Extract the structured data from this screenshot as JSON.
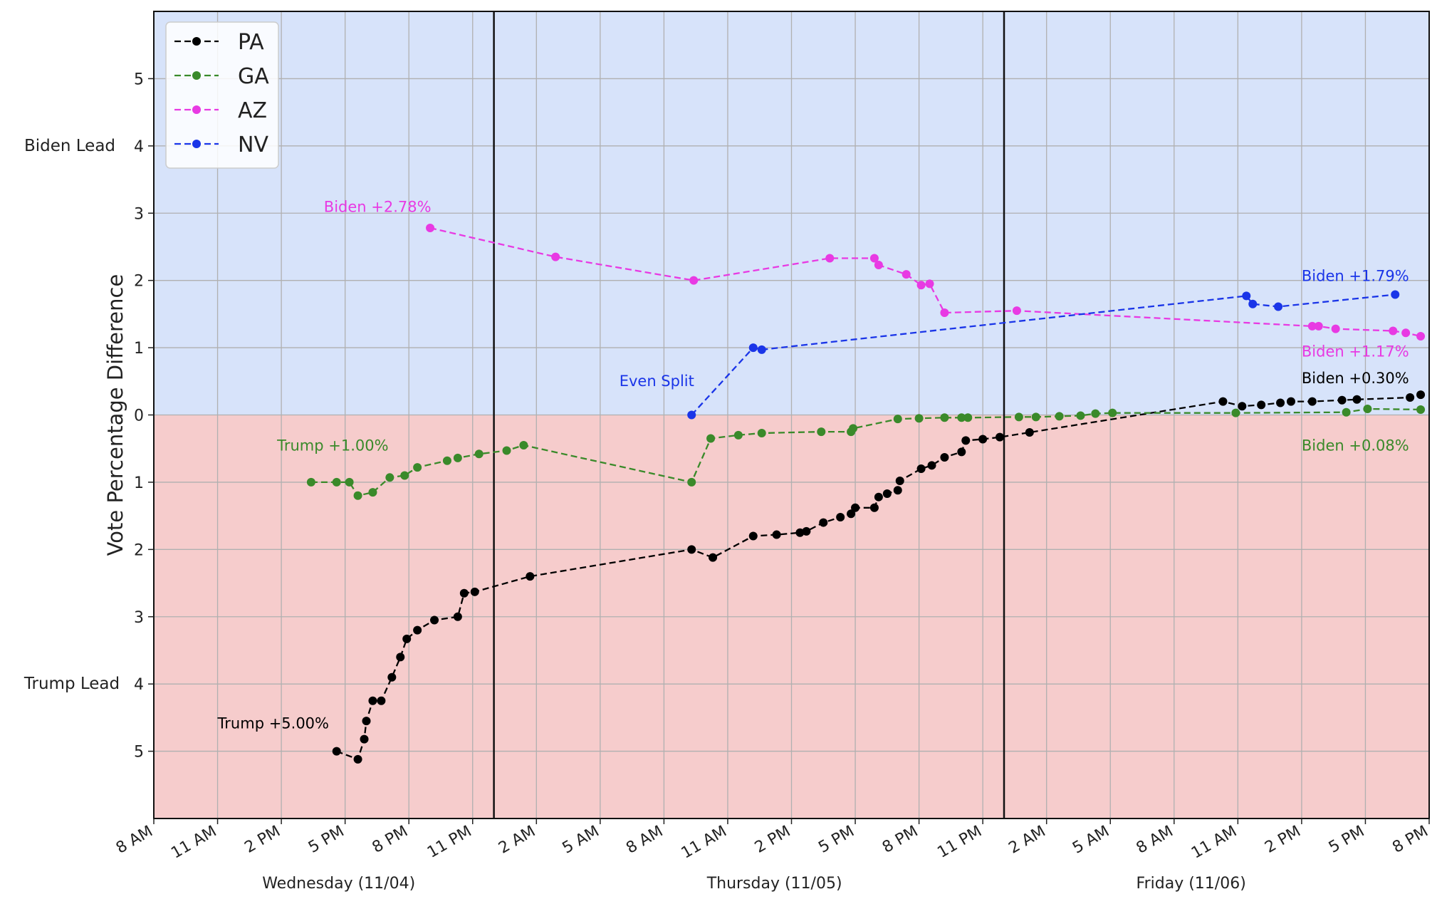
{
  "chart_data": {
    "type": "line",
    "ylabel": "Vote Percentage Difference",
    "xlim_hours": [
      0,
      60
    ],
    "ylim": [
      -6,
      6
    ],
    "grid": true,
    "legend_position": "top-left",
    "y_ticks": [
      {
        "value": 5,
        "label": "5"
      },
      {
        "value": 4,
        "label": "4"
      },
      {
        "value": 3,
        "label": "3"
      },
      {
        "value": 2,
        "label": "2"
      },
      {
        "value": 1,
        "label": "1"
      },
      {
        "value": 0,
        "label": "0"
      },
      {
        "value": -1,
        "label": "1"
      },
      {
        "value": -2,
        "label": "2"
      },
      {
        "value": -3,
        "label": "3"
      },
      {
        "value": -4,
        "label": "4"
      },
      {
        "value": -5,
        "label": "5"
      }
    ],
    "x_ticks": [
      "8 AM",
      "11 AM",
      "2 PM",
      "5 PM",
      "8 PM",
      "11 PM",
      "2 AM",
      "5 AM",
      "8 AM",
      "11 AM",
      "2 PM",
      "5 PM",
      "8 PM",
      "11 PM",
      "2 AM",
      "5 AM",
      "8 AM",
      "11 AM",
      "2 PM",
      "5 PM",
      "8 PM"
    ],
    "day_labels": [
      {
        "text": "Wednesday (11/04)",
        "hour": 8.7
      },
      {
        "text": "Thursday (11/05)",
        "hour": 29.2
      },
      {
        "text": "Friday (11/06)",
        "hour": 48.8
      }
    ],
    "midnight_lines": [
      16,
      40
    ],
    "region_labels": {
      "biden": "Biden Lead",
      "trump": "Trump Lead"
    },
    "region_colors": {
      "biden": "#d7e3fa",
      "trump": "#f6cccc"
    },
    "series": [
      {
        "name": "PA",
        "color": "#000000",
        "points": [
          [
            8.6,
            -5.0
          ],
          [
            9.6,
            -5.12
          ],
          [
            9.9,
            -4.82
          ],
          [
            10.0,
            -4.55
          ],
          [
            10.3,
            -4.25
          ],
          [
            10.7,
            -4.25
          ],
          [
            11.2,
            -3.9
          ],
          [
            11.6,
            -3.6
          ],
          [
            11.9,
            -3.33
          ],
          [
            12.4,
            -3.2
          ],
          [
            13.2,
            -3.05
          ],
          [
            14.3,
            -3.0
          ],
          [
            14.6,
            -2.65
          ],
          [
            15.1,
            -2.63
          ],
          [
            17.7,
            -2.4
          ],
          [
            25.3,
            -2.0
          ],
          [
            26.3,
            -2.12
          ],
          [
            28.2,
            -1.8
          ],
          [
            29.3,
            -1.78
          ],
          [
            30.4,
            -1.75
          ],
          [
            30.7,
            -1.73
          ],
          [
            31.5,
            -1.6
          ],
          [
            32.3,
            -1.52
          ],
          [
            32.8,
            -1.47
          ],
          [
            33.0,
            -1.38
          ],
          [
            33.9,
            -1.38
          ],
          [
            34.1,
            -1.22
          ],
          [
            34.5,
            -1.17
          ],
          [
            35.0,
            -1.12
          ],
          [
            35.1,
            -0.98
          ],
          [
            36.1,
            -0.8
          ],
          [
            36.6,
            -0.75
          ],
          [
            37.2,
            -0.63
          ],
          [
            38.0,
            -0.55
          ],
          [
            38.2,
            -0.38
          ],
          [
            39.0,
            -0.36
          ],
          [
            39.8,
            -0.33
          ],
          [
            41.2,
            -0.26
          ],
          [
            50.3,
            0.2
          ],
          [
            51.2,
            0.13
          ],
          [
            52.1,
            0.15
          ],
          [
            53.0,
            0.18
          ],
          [
            53.5,
            0.2
          ],
          [
            54.5,
            0.2
          ],
          [
            55.9,
            0.22
          ],
          [
            56.6,
            0.23
          ],
          [
            59.1,
            0.26
          ],
          [
            59.6,
            0.3
          ]
        ]
      },
      {
        "name": "GA",
        "color": "#3a8a2a",
        "points": [
          [
            7.4,
            -1.0
          ],
          [
            8.6,
            -1.0
          ],
          [
            9.2,
            -1.0
          ],
          [
            9.6,
            -1.2
          ],
          [
            10.3,
            -1.15
          ],
          [
            11.1,
            -0.93
          ],
          [
            11.8,
            -0.9
          ],
          [
            12.4,
            -0.78
          ],
          [
            13.8,
            -0.68
          ],
          [
            14.3,
            -0.64
          ],
          [
            15.3,
            -0.58
          ],
          [
            16.6,
            -0.53
          ],
          [
            17.4,
            -0.45
          ],
          [
            25.3,
            -1.0
          ],
          [
            26.2,
            -0.35
          ],
          [
            27.5,
            -0.3
          ],
          [
            28.6,
            -0.27
          ],
          [
            31.4,
            -0.25
          ],
          [
            32.8,
            -0.25
          ],
          [
            32.9,
            -0.2
          ],
          [
            35.0,
            -0.06
          ],
          [
            36.0,
            -0.05
          ],
          [
            37.2,
            -0.04
          ],
          [
            38.0,
            -0.04
          ],
          [
            38.3,
            -0.04
          ],
          [
            40.7,
            -0.03
          ],
          [
            41.5,
            -0.03
          ],
          [
            42.6,
            -0.02
          ],
          [
            43.6,
            -0.01
          ],
          [
            44.3,
            0.02
          ],
          [
            45.1,
            0.03
          ],
          [
            50.9,
            0.03
          ],
          [
            56.1,
            0.04
          ],
          [
            57.1,
            0.09
          ],
          [
            59.6,
            0.08
          ]
        ]
      },
      {
        "name": "AZ",
        "color": "#e83ae3",
        "points": [
          [
            13.0,
            2.78
          ],
          [
            18.9,
            2.35
          ],
          [
            25.4,
            2.0
          ],
          [
            31.8,
            2.33
          ],
          [
            33.9,
            2.33
          ],
          [
            34.1,
            2.23
          ],
          [
            35.4,
            2.09
          ],
          [
            36.1,
            1.93
          ],
          [
            36.5,
            1.95
          ],
          [
            37.2,
            1.52
          ],
          [
            40.6,
            1.55
          ],
          [
            54.5,
            1.32
          ],
          [
            54.8,
            1.32
          ],
          [
            55.6,
            1.28
          ],
          [
            58.3,
            1.25
          ],
          [
            58.9,
            1.22
          ],
          [
            59.6,
            1.17
          ]
        ]
      },
      {
        "name": "NV",
        "color": "#1a35e8",
        "points": [
          [
            25.3,
            0.0
          ],
          [
            28.2,
            1.0
          ],
          [
            28.6,
            0.97
          ],
          [
            51.4,
            1.77
          ],
          [
            51.7,
            1.65
          ],
          [
            52.9,
            1.61
          ],
          [
            58.4,
            1.79
          ]
        ]
      }
    ],
    "annotations": [
      {
        "text": "Biden +2.78%",
        "color": "#e83ae3",
        "hour": 8.0,
        "value": 3.02
      },
      {
        "text": "Trump +1.00%",
        "color": "#3a8a2a",
        "hour": 5.8,
        "value": -0.53
      },
      {
        "text": "Trump +5.00%",
        "color": "#000000",
        "hour": 3.0,
        "value": -4.66
      },
      {
        "text": "Even Split",
        "color": "#1a35e8",
        "hour": 21.9,
        "value": 0.43
      },
      {
        "text": "Biden +1.79%",
        "color": "#1a35e8",
        "hour": 54.0,
        "value": 1.99
      },
      {
        "text": "Biden +1.17%",
        "color": "#e83ae3",
        "hour": 54.0,
        "value": 0.87
      },
      {
        "text": "Biden +0.30%",
        "color": "#000000",
        "hour": 54.0,
        "value": 0.47
      },
      {
        "text": "Biden +0.08%",
        "color": "#3a8a2a",
        "hour": 54.0,
        "value": -0.53
      }
    ]
  }
}
